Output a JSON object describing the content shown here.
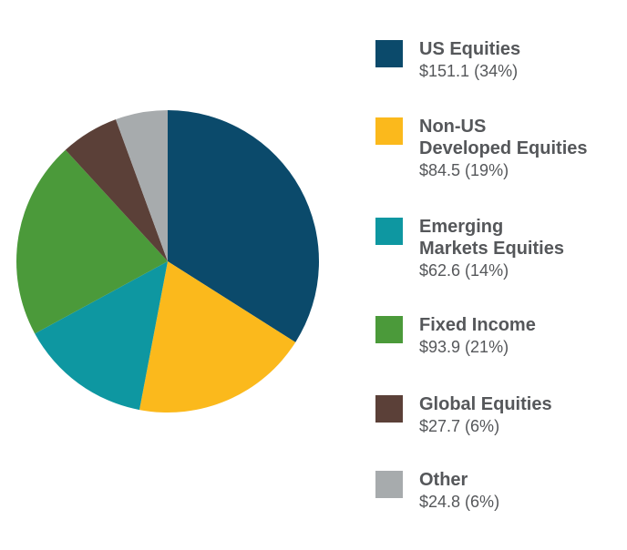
{
  "chart_data": {
    "type": "pie",
    "title": "",
    "slices": [
      {
        "label": "US Equities",
        "value": 151.1,
        "value_text": "$151.1",
        "percent_text": "34%",
        "color": "#0b4a6b"
      },
      {
        "label": "Non-US\nDeveloped Equities",
        "value": 84.5,
        "value_text": "$84.5",
        "percent_text": "19%",
        "color": "#fbb91c"
      },
      {
        "label": "Emerging\nMarkets Equities",
        "value": 62.6,
        "value_text": "$62.6",
        "percent_text": "14%",
        "color": "#0e97a1"
      },
      {
        "label": "Fixed Income",
        "value": 93.9,
        "value_text": "$93.9",
        "percent_text": "21%",
        "color": "#4b9a3a"
      },
      {
        "label": "Global Equities",
        "value": 27.7,
        "value_text": "$27.7",
        "percent_text": "6%",
        "color": "#5b4038"
      },
      {
        "label": "Other",
        "value": 24.8,
        "value_text": "$24.8",
        "percent_text": "6%",
        "color": "#a7abad"
      }
    ],
    "legend_position": "right",
    "start_angle": "12 o'clock, clockwise"
  }
}
